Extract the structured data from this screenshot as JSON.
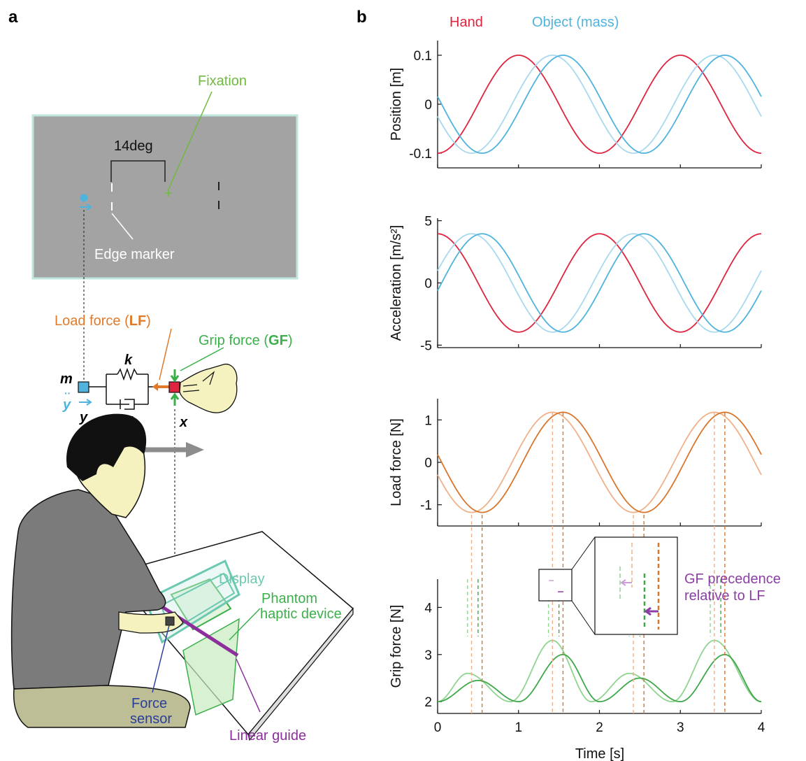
{
  "panel_a": {
    "letter": "a",
    "fixation": "Fixation",
    "angle": "14deg",
    "edge_marker": "Edge marker",
    "load_force_prefix": "Load force (",
    "load_force_abbr": "LF",
    "load_force_suffix": ")",
    "grip_force_prefix": "Grip force (",
    "grip_force_abbr": "GF",
    "grip_force_suffix": ")",
    "mass": "m",
    "spring": "k",
    "damper": "d",
    "x": "x",
    "y": "y",
    "yddot": "y",
    "display": "Display",
    "phantom_line1": "Phantom",
    "phantom_line2": "haptic device",
    "force_sensor_line1": "Force",
    "force_sensor_line2": "sensor",
    "linear_guide": "Linear guide",
    "colors": {
      "hand": "#e0243f",
      "object": "#4fb3de",
      "load": "#e07a2a",
      "grip": "#3bb04a",
      "precedence": "#8c3fa4",
      "guide": "#8c2f9c",
      "sensor": "#2a3f9c"
    }
  },
  "panel_b": {
    "letter": "b",
    "legend": [
      "Hand",
      "Object (mass)"
    ],
    "xlabel": "Time [s]",
    "x_ticks": [
      "0",
      "1",
      "2",
      "3",
      "4"
    ],
    "inset_label_line1": "GF precedence",
    "inset_label_line2": "relative to LF"
  },
  "chart_data": [
    {
      "type": "line",
      "ylabel": "Position [m]",
      "xlim": [
        0,
        4
      ],
      "ylim": [
        -0.13,
        0.13
      ],
      "y_ticks": [
        0.1,
        0,
        -0.1
      ],
      "y_tick_labels": [
        "0.1",
        "0",
        "-0.1"
      ],
      "series": [
        {
          "name": "Hand",
          "color": "#e0243f",
          "amplitude": 0.1,
          "period": 2,
          "peak_time": 1.0
        },
        {
          "name": "Object (mass)",
          "color": "#a8d9ee",
          "amplitude": 0.1,
          "period": 2,
          "peak_time": 1.42
        },
        {
          "name": "Object (mass)",
          "color": "#4fb3de",
          "amplitude": 0.1,
          "period": 2,
          "peak_time": 1.55
        }
      ]
    },
    {
      "type": "line",
      "ylabel": "Acceleration [m/s²]",
      "xlim": [
        0,
        4
      ],
      "ylim": [
        -5.2,
        5.2
      ],
      "y_ticks": [
        5,
        0,
        -5
      ],
      "y_tick_labels": [
        "5",
        "0",
        "-5"
      ],
      "series": [
        {
          "name": "Hand",
          "color": "#e0243f",
          "amplitude": 3.95,
          "period": 2,
          "peak_time": 0.0
        },
        {
          "name": "Object (mass)",
          "color": "#a8d9ee",
          "amplitude": 3.95,
          "period": 2,
          "peak_time": 0.42
        },
        {
          "name": "Object (mass)",
          "color": "#4fb3de",
          "amplitude": 3.95,
          "period": 2,
          "peak_time": 0.55
        }
      ]
    },
    {
      "type": "line",
      "ylabel": "Load force [N]",
      "xlim": [
        0,
        4
      ],
      "ylim": [
        -1.5,
        1.5
      ],
      "y_ticks": [
        1,
        0,
        -1
      ],
      "y_tick_labels": [
        "1",
        "0",
        "-1"
      ],
      "series": [
        {
          "name": "",
          "color": "#f0b088",
          "amplitude": 1.18,
          "period": 2,
          "peak_time": 1.42
        },
        {
          "name": "",
          "color": "#d8762c",
          "amplitude": 1.18,
          "period": 2,
          "peak_time": 1.55
        }
      ]
    },
    {
      "type": "line",
      "ylabel": "Grip force [N]",
      "xlim": [
        0,
        4
      ],
      "ylim": [
        1.75,
        4.6
      ],
      "y_ticks": [
        4,
        3,
        2
      ],
      "y_tick_labels": [
        "4",
        "3",
        "2"
      ],
      "series": [
        {
          "name": "",
          "color": "#8fd48f",
          "baseline": 2.0,
          "peaks": [
            [
              0.37,
              2.6
            ],
            [
              1.42,
              3.3
            ],
            [
              2.37,
              2.6
            ],
            [
              3.42,
              3.3
            ]
          ],
          "troughs": [
            [
              0.0,
              2.0
            ],
            [
              0.9,
              2.0
            ],
            [
              1.9,
              2.0
            ],
            [
              2.9,
              2.0
            ],
            [
              4.0,
              2.0
            ]
          ]
        },
        {
          "name": "",
          "color": "#3ea848",
          "baseline": 2.0,
          "peaks": [
            [
              0.5,
              2.45
            ],
            [
              1.55,
              3.0
            ],
            [
              2.5,
              2.5
            ],
            [
              3.55,
              3.0
            ]
          ],
          "troughs": [
            [
              0.0,
              2.0
            ],
            [
              1.0,
              2.0
            ],
            [
              2.0,
              2.0
            ],
            [
              3.0,
              2.0
            ],
            [
              4.0,
              2.0
            ]
          ]
        }
      ]
    }
  ]
}
